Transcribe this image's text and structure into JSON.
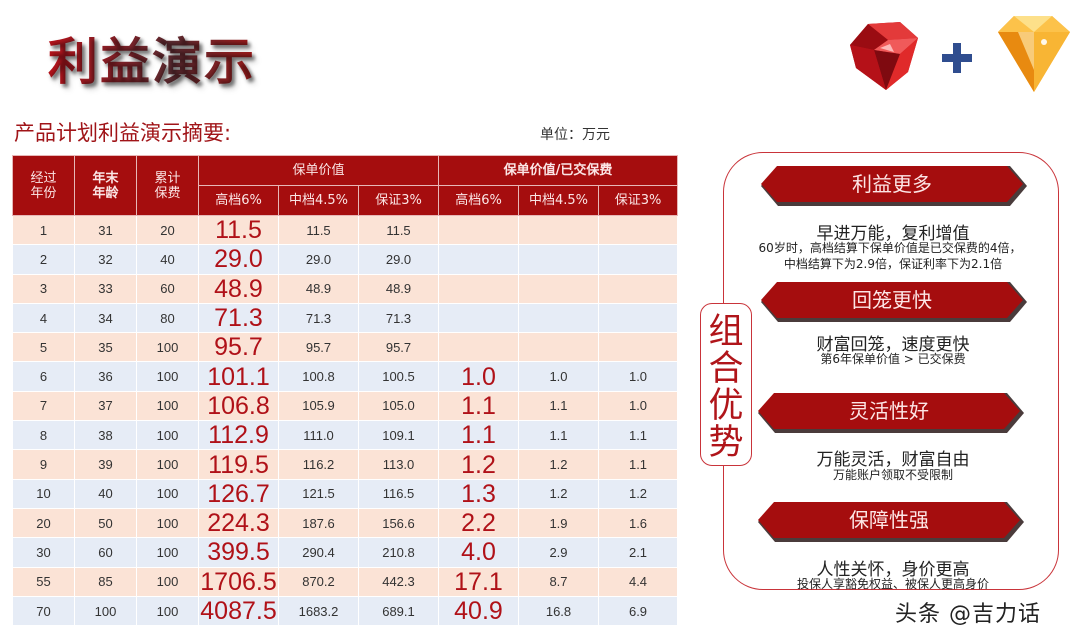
{
  "page": {
    "title": "利益演示",
    "subtitle": "产品计划利益演示摘要:",
    "unit": "单位：万元"
  },
  "icons": {
    "ruby": "red-gem-icon",
    "plus": "plus-icon",
    "diamond": "gold-gem-icon",
    "plus_color": "#2f4d8f",
    "ruby_color": "#d11a1a",
    "diamond_color": "#f5a623"
  },
  "table": {
    "headers": {
      "year": "经过年份",
      "year_l1": "经过",
      "year_l2": "年份",
      "age_l1": "年末",
      "age_l2": "年龄",
      "premium_l1": "累计",
      "premium_l2": "保费",
      "group1": "保单价值",
      "group2": "保单价值/已交保费",
      "sub": [
        "高档6%",
        "中档4.5%",
        "保证3%",
        "高档6%",
        "中档4.5%",
        "保证3%"
      ]
    },
    "rows": [
      {
        "year": "1",
        "age": "31",
        "premium": "20",
        "v_high": "11.5",
        "v_mid": "11.5",
        "v_gua": "11.5",
        "r_high": "",
        "r_mid": "",
        "r_gua": ""
      },
      {
        "year": "2",
        "age": "32",
        "premium": "40",
        "v_high": "29.0",
        "v_mid": "29.0",
        "v_gua": "29.0",
        "r_high": "",
        "r_mid": "",
        "r_gua": ""
      },
      {
        "year": "3",
        "age": "33",
        "premium": "60",
        "v_high": "48.9",
        "v_mid": "48.9",
        "v_gua": "48.9",
        "r_high": "",
        "r_mid": "",
        "r_gua": ""
      },
      {
        "year": "4",
        "age": "34",
        "premium": "80",
        "v_high": "71.3",
        "v_mid": "71.3",
        "v_gua": "71.3",
        "r_high": "",
        "r_mid": "",
        "r_gua": ""
      },
      {
        "year": "5",
        "age": "35",
        "premium": "100",
        "v_high": "95.7",
        "v_mid": "95.7",
        "v_gua": "95.7",
        "r_high": "",
        "r_mid": "",
        "r_gua": ""
      },
      {
        "year": "6",
        "age": "36",
        "premium": "100",
        "v_high": "101.1",
        "v_mid": "100.8",
        "v_gua": "100.5",
        "r_high": "1.0",
        "r_mid": "1.0",
        "r_gua": "1.0"
      },
      {
        "year": "7",
        "age": "37",
        "premium": "100",
        "v_high": "106.8",
        "v_mid": "105.9",
        "v_gua": "105.0",
        "r_high": "1.1",
        "r_mid": "1.1",
        "r_gua": "1.0"
      },
      {
        "year": "8",
        "age": "38",
        "premium": "100",
        "v_high": "112.9",
        "v_mid": "111.0",
        "v_gua": "109.1",
        "r_high": "1.1",
        "r_mid": "1.1",
        "r_gua": "1.1"
      },
      {
        "year": "9",
        "age": "39",
        "premium": "100",
        "v_high": "119.5",
        "v_mid": "116.2",
        "v_gua": "113.0",
        "r_high": "1.2",
        "r_mid": "1.2",
        "r_gua": "1.1"
      },
      {
        "year": "10",
        "age": "40",
        "premium": "100",
        "v_high": "126.7",
        "v_mid": "121.5",
        "v_gua": "116.5",
        "r_high": "1.3",
        "r_mid": "1.2",
        "r_gua": "1.2"
      },
      {
        "year": "20",
        "age": "50",
        "premium": "100",
        "v_high": "224.3",
        "v_mid": "187.6",
        "v_gua": "156.6",
        "r_high": "2.2",
        "r_mid": "1.9",
        "r_gua": "1.6"
      },
      {
        "year": "30",
        "age": "60",
        "premium": "100",
        "v_high": "399.5",
        "v_mid": "290.4",
        "v_gua": "210.8",
        "r_high": "4.0",
        "r_mid": "2.9",
        "r_gua": "2.1"
      },
      {
        "year": "55",
        "age": "85",
        "premium": "100",
        "v_high": "1706.5",
        "v_mid": "870.2",
        "v_gua": "442.3",
        "r_high": "17.1",
        "r_mid": "8.7",
        "r_gua": "4.4"
      },
      {
        "year": "70",
        "age": "100",
        "premium": "100",
        "v_high": "4087.5",
        "v_mid": "1683.2",
        "v_gua": "689.1",
        "r_high": "40.9",
        "r_mid": "16.8",
        "r_gua": "6.9"
      }
    ]
  },
  "advantages": {
    "label_chars": [
      "组",
      "合",
      "优",
      "势"
    ],
    "items": [
      {
        "banner": "利益更多",
        "headline": "早进万能，复利增值",
        "detail_l1": "60岁时，高档结算下保单价值是已交保费的4倍，",
        "detail_l2": "中档结算下为2.9倍，保证利率下为2.1倍"
      },
      {
        "banner": "回笼更快",
        "headline": "财富回笼，速度更快",
        "detail_l1": "第6年保单价值 > 已交保费",
        "detail_l2": ""
      },
      {
        "banner": "灵活性好",
        "headline": "万能灵活，财富自由",
        "detail_l1": "万能账户领取不受限制",
        "detail_l2": ""
      },
      {
        "banner": "保障性强",
        "headline": "人性关怀，身价更高",
        "detail_l1": "投保人享豁免权益、被保人更高身价",
        "detail_l2": ""
      }
    ]
  },
  "watermark": "头条 @吉力话",
  "colors": {
    "brand_red": "#a50d0e",
    "odd_row": "#fbe3d6",
    "even_row": "#e6ecf6",
    "highlight_text": "#b01118"
  }
}
